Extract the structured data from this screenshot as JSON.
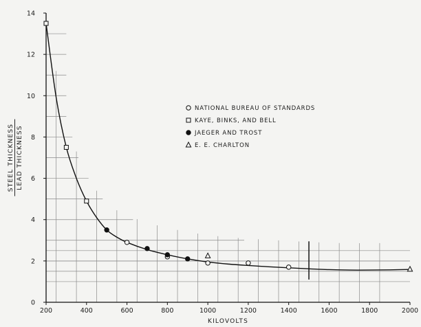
{
  "chart_data": {
    "type": "scatter",
    "xlabel": "KILOVOLTS",
    "ylabel": [
      "STEEL THICKNESS",
      "LEAD THICKNESS"
    ],
    "xlim": [
      200,
      2000
    ],
    "ylim": [
      0,
      14
    ],
    "xticks": [
      200,
      400,
      600,
      800,
      1000,
      1200,
      1400,
      1600,
      1800,
      2000
    ],
    "yticks": [
      0,
      2,
      4,
      6,
      8,
      10,
      12,
      14
    ],
    "grid": "partial hand-drawn step grid",
    "legend_position": "upper-right",
    "series": [
      {
        "name": "NATIONAL BUREAU OF STANDARDS",
        "marker": "open-circle",
        "x": [
          600,
          800,
          1000,
          1200,
          1400
        ],
        "y": [
          2.9,
          2.2,
          1.9,
          1.9,
          1.7
        ]
      },
      {
        "name": "KAYE, BINKS, AND BELL",
        "marker": "open-square",
        "x": [
          200,
          300,
          400
        ],
        "y": [
          13.5,
          7.5,
          4.9
        ]
      },
      {
        "name": "JAEGER AND TROST",
        "marker": "filled-circle",
        "x": [
          500,
          700,
          800,
          900
        ],
        "y": [
          3.5,
          2.6,
          2.3,
          2.1
        ]
      },
      {
        "name": "E. E. CHARLTON",
        "marker": "open-triangle",
        "x": [
          1000,
          2000
        ],
        "y": [
          2.25,
          1.6
        ]
      }
    ],
    "fitted_curve": {
      "x": [
        200,
        250,
        300,
        350,
        400,
        450,
        500,
        550,
        600,
        700,
        800,
        900,
        1000,
        1100,
        1200,
        1300,
        1400,
        1500,
        1600,
        1700,
        1800,
        1900,
        2000
      ],
      "y": [
        13.5,
        9.9,
        7.5,
        6.0,
        4.9,
        4.1,
        3.5,
        3.15,
        2.9,
        2.55,
        2.3,
        2.1,
        1.95,
        1.85,
        1.78,
        1.72,
        1.67,
        1.62,
        1.58,
        1.56,
        1.56,
        1.57,
        1.59
      ]
    }
  }
}
